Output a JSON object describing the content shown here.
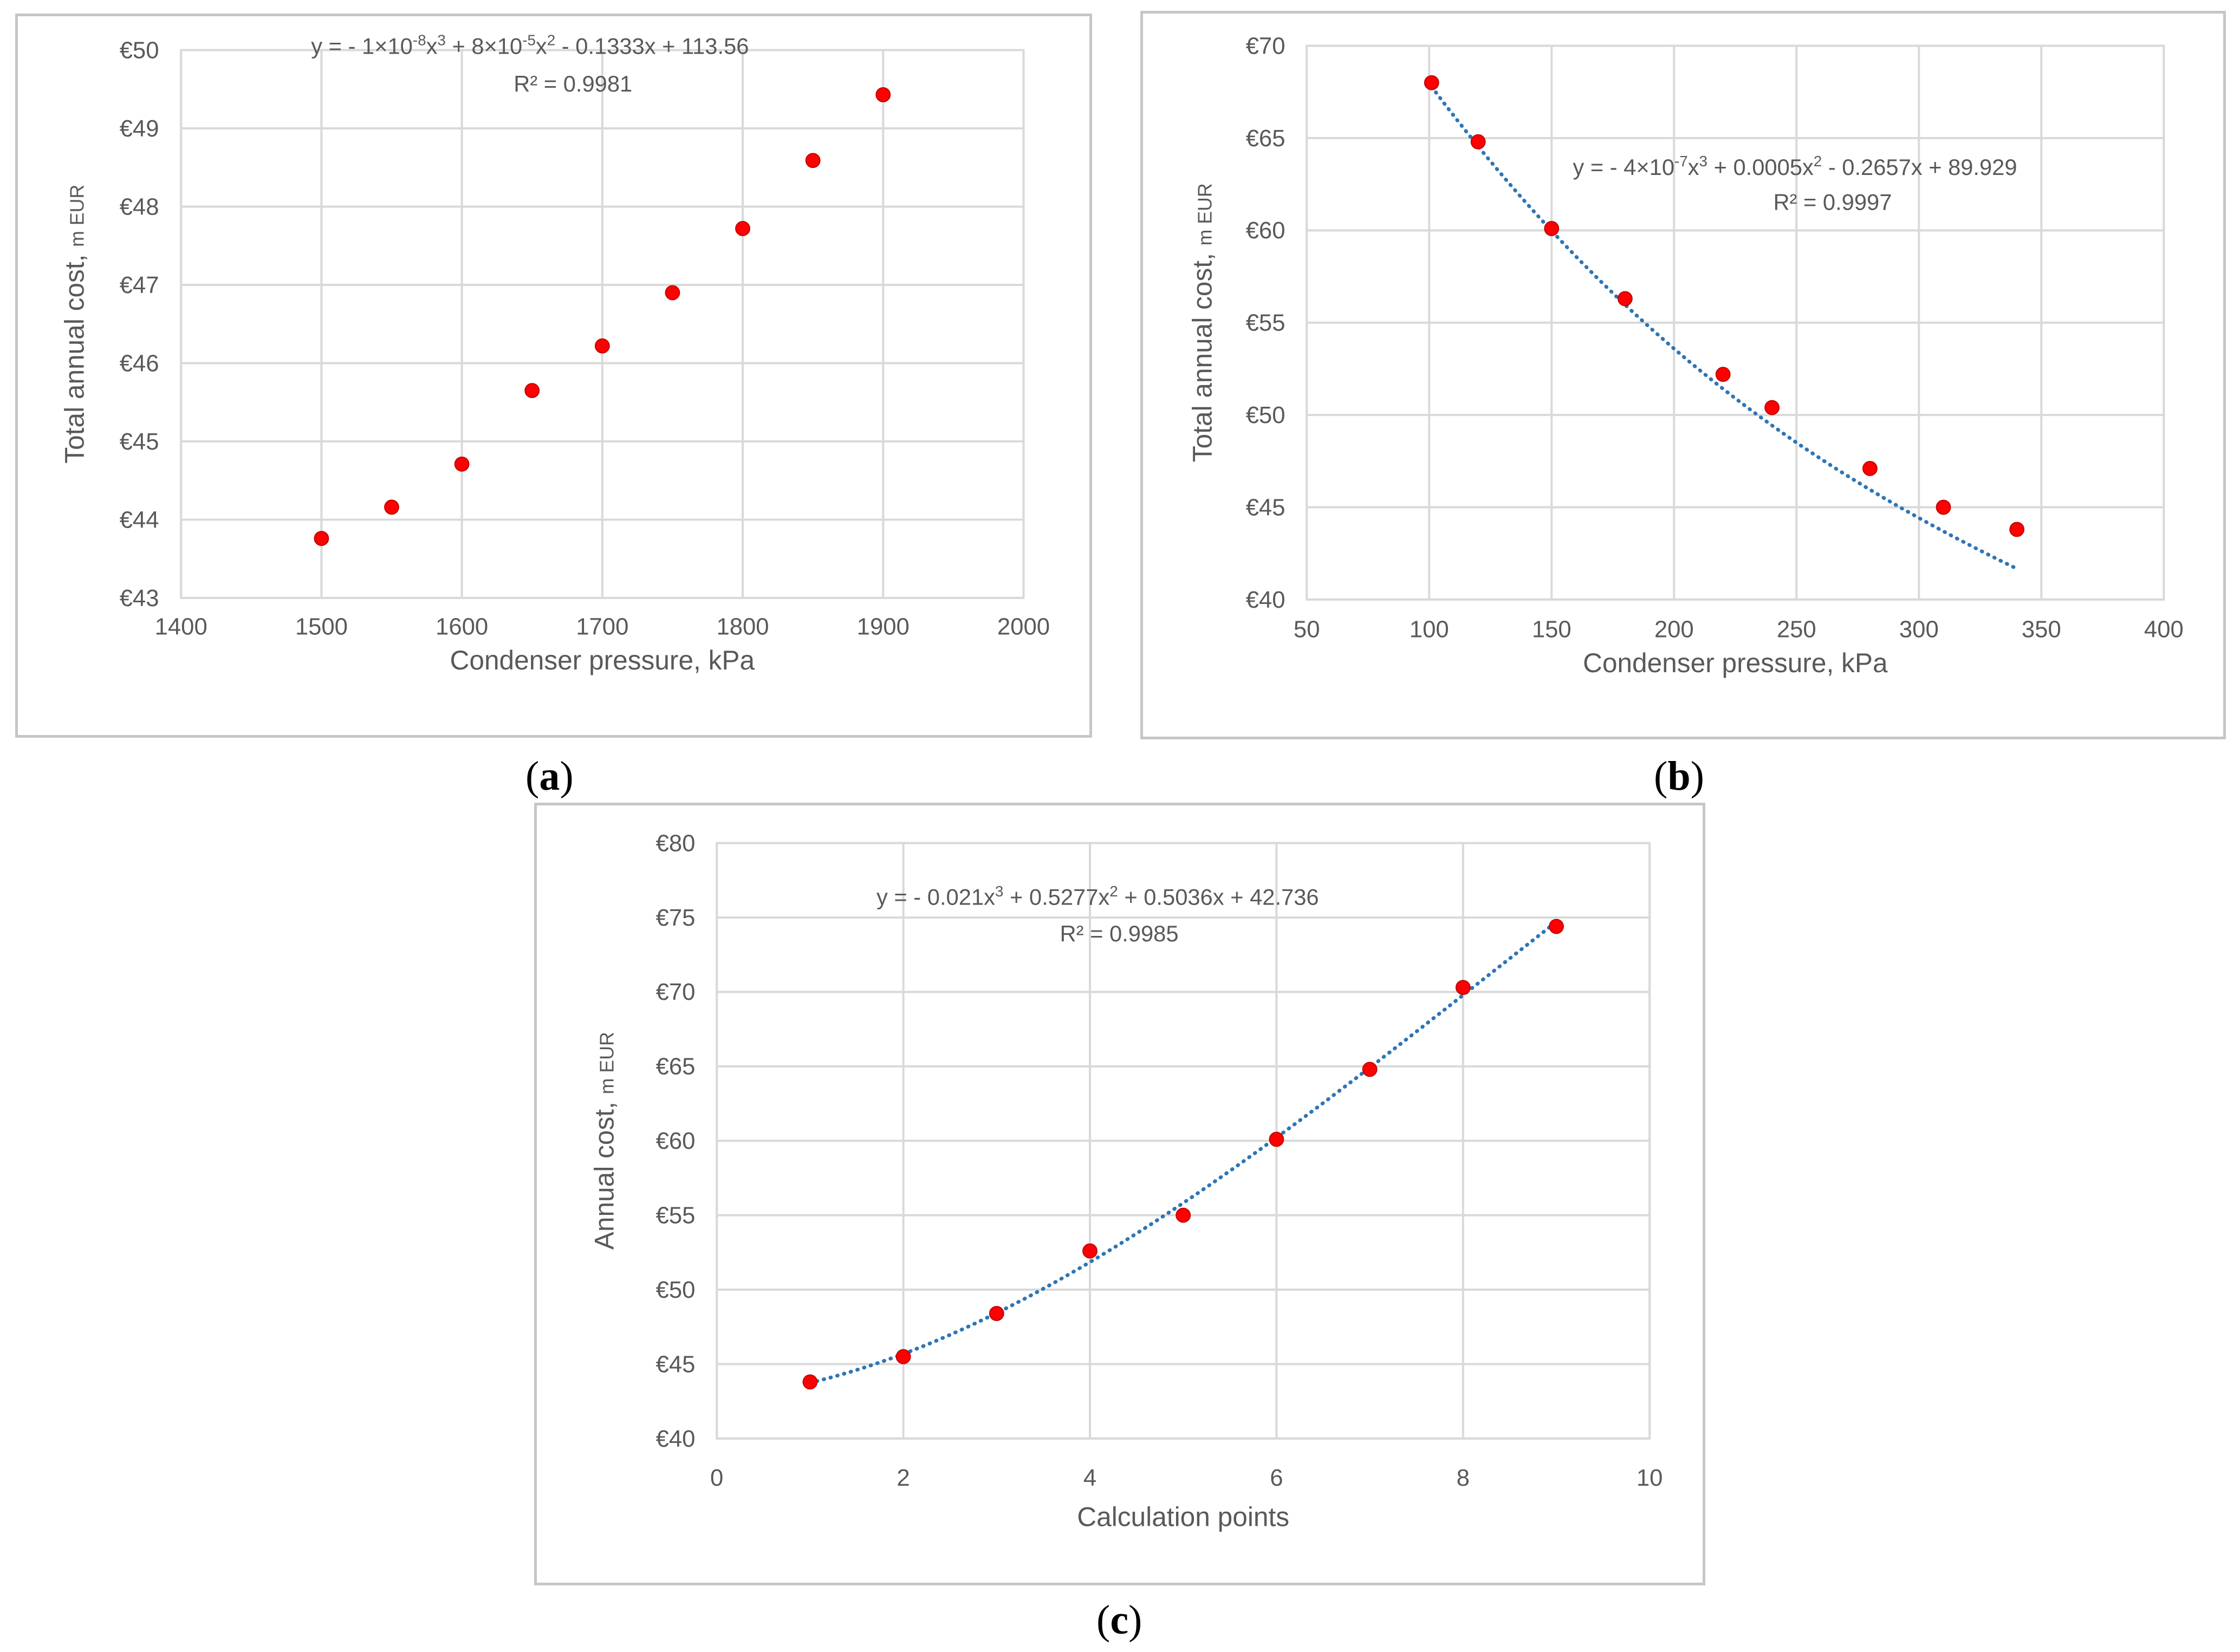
{
  "chart_data": [
    {
      "panel": "a",
      "type": "scatter",
      "x": [
        1500,
        1550,
        1600,
        1650,
        1700,
        1750,
        1800,
        1850,
        1900
      ],
      "y": [
        43.76,
        44.16,
        44.71,
        45.65,
        46.22,
        46.9,
        47.72,
        48.59,
        49.43
      ],
      "trendline": {
        "type": "polynomial-3",
        "coefficients": [
          -1e-08,
          8e-05,
          -0.1333,
          113.56
        ],
        "style": "dotted"
      },
      "equation": {
        "prefix": "y = - 1×10",
        "e1": "-8",
        "mid1": "x",
        "p1": "3",
        "mid2": " + 8×10",
        "e2": "-5",
        "mid3": "x",
        "p2": "2",
        "suffix": " - 0.1333x + 113.56"
      },
      "r_squared": "R² = 0.9981",
      "xlabel": "Condenser pressure, kPa",
      "ylabel_main": "Total annual cost, ",
      "ylabel_unit": "m EUR",
      "xlim": [
        1400,
        2000
      ],
      "ylim": [
        43,
        50
      ],
      "x_ticks": [
        1400,
        1500,
        1600,
        1700,
        1800,
        1900,
        2000
      ],
      "x_tick_labels": [
        "1400",
        "1500",
        "1600",
        "1700",
        "1800",
        "1900",
        "2000"
      ],
      "y_ticks": [
        43,
        44,
        45,
        46,
        47,
        48,
        49,
        50
      ],
      "y_tick_labels": [
        "€43",
        "€44",
        "€45",
        "€46",
        "€47",
        "€48",
        "€49",
        "€50"
      ],
      "grid": true,
      "marker_color": "#ff0000",
      "trend_color": "#2e75b6"
    },
    {
      "panel": "b",
      "type": "scatter",
      "x": [
        101,
        120,
        150,
        180,
        220,
        240,
        280,
        310,
        340
      ],
      "y": [
        68.0,
        64.8,
        60.1,
        56.3,
        52.2,
        50.4,
        47.1,
        45.0,
        43.8
      ],
      "trendline": {
        "type": "polynomial-3",
        "coefficients": [
          -4e-07,
          0.0005,
          -0.2657,
          89.929
        ],
        "style": "dotted"
      },
      "equation": {
        "prefix": "y = - 4×10",
        "e1": "-7",
        "mid1": "x",
        "p1": "3",
        "mid2": " + 0.0005x",
        "e2": "",
        "mid3": "",
        "p2": "2",
        "suffix": " - 0.2657x + 89.929"
      },
      "r_squared": "R² = 0.9997",
      "xlabel": "Condenser pressure, kPa",
      "ylabel_main": "Total annual cost, ",
      "ylabel_unit": "m EUR",
      "xlim": [
        50,
        400
      ],
      "ylim": [
        40,
        70
      ],
      "x_ticks": [
        50,
        100,
        150,
        200,
        250,
        300,
        350,
        400
      ],
      "x_tick_labels": [
        "50",
        "100",
        "150",
        "200",
        "250",
        "300",
        "350",
        "400"
      ],
      "y_ticks": [
        40,
        45,
        50,
        55,
        60,
        65,
        70
      ],
      "y_tick_labels": [
        "€40",
        "€45",
        "€50",
        "€55",
        "€60",
        "€65",
        "€70"
      ],
      "grid": true,
      "marker_color": "#ff0000",
      "trend_color": "#2e75b6"
    },
    {
      "panel": "c",
      "type": "scatter",
      "x": [
        1,
        2,
        3,
        4,
        5,
        6,
        7,
        8,
        9
      ],
      "y": [
        43.8,
        45.5,
        48.4,
        52.6,
        55.0,
        60.1,
        64.8,
        70.3,
        74.4
      ],
      "trendline": {
        "type": "polynomial-3",
        "coefficients": [
          -0.021,
          0.5277,
          0.5036,
          42.736
        ],
        "style": "dotted"
      },
      "equation": {
        "prefix": "y = - 0.021x",
        "e1": "",
        "mid1": "",
        "p1": "3",
        "mid2": " + 0.5277x",
        "e2": "",
        "mid3": "",
        "p2": "2",
        "suffix": " + 0.5036x + 42.736"
      },
      "r_squared": "R² = 0.9985",
      "xlabel": "Calculation points",
      "ylabel_main": "Annual cost, ",
      "ylabel_unit": "m EUR",
      "xlim": [
        0,
        10
      ],
      "ylim": [
        40,
        80
      ],
      "x_ticks": [
        0,
        2,
        4,
        6,
        8,
        10
      ],
      "x_tick_labels": [
        "0",
        "2",
        "4",
        "6",
        "8",
        "10"
      ],
      "y_ticks": [
        40,
        45,
        50,
        55,
        60,
        65,
        70,
        75,
        80
      ],
      "y_tick_labels": [
        "€40",
        "€45",
        "€50",
        "€55",
        "€60",
        "€65",
        "€70",
        "€75",
        "€80"
      ],
      "grid": true,
      "marker_color": "#ff0000",
      "trend_color": "#2e75b6"
    }
  ],
  "panel_labels": [
    "a",
    "b",
    "c"
  ]
}
